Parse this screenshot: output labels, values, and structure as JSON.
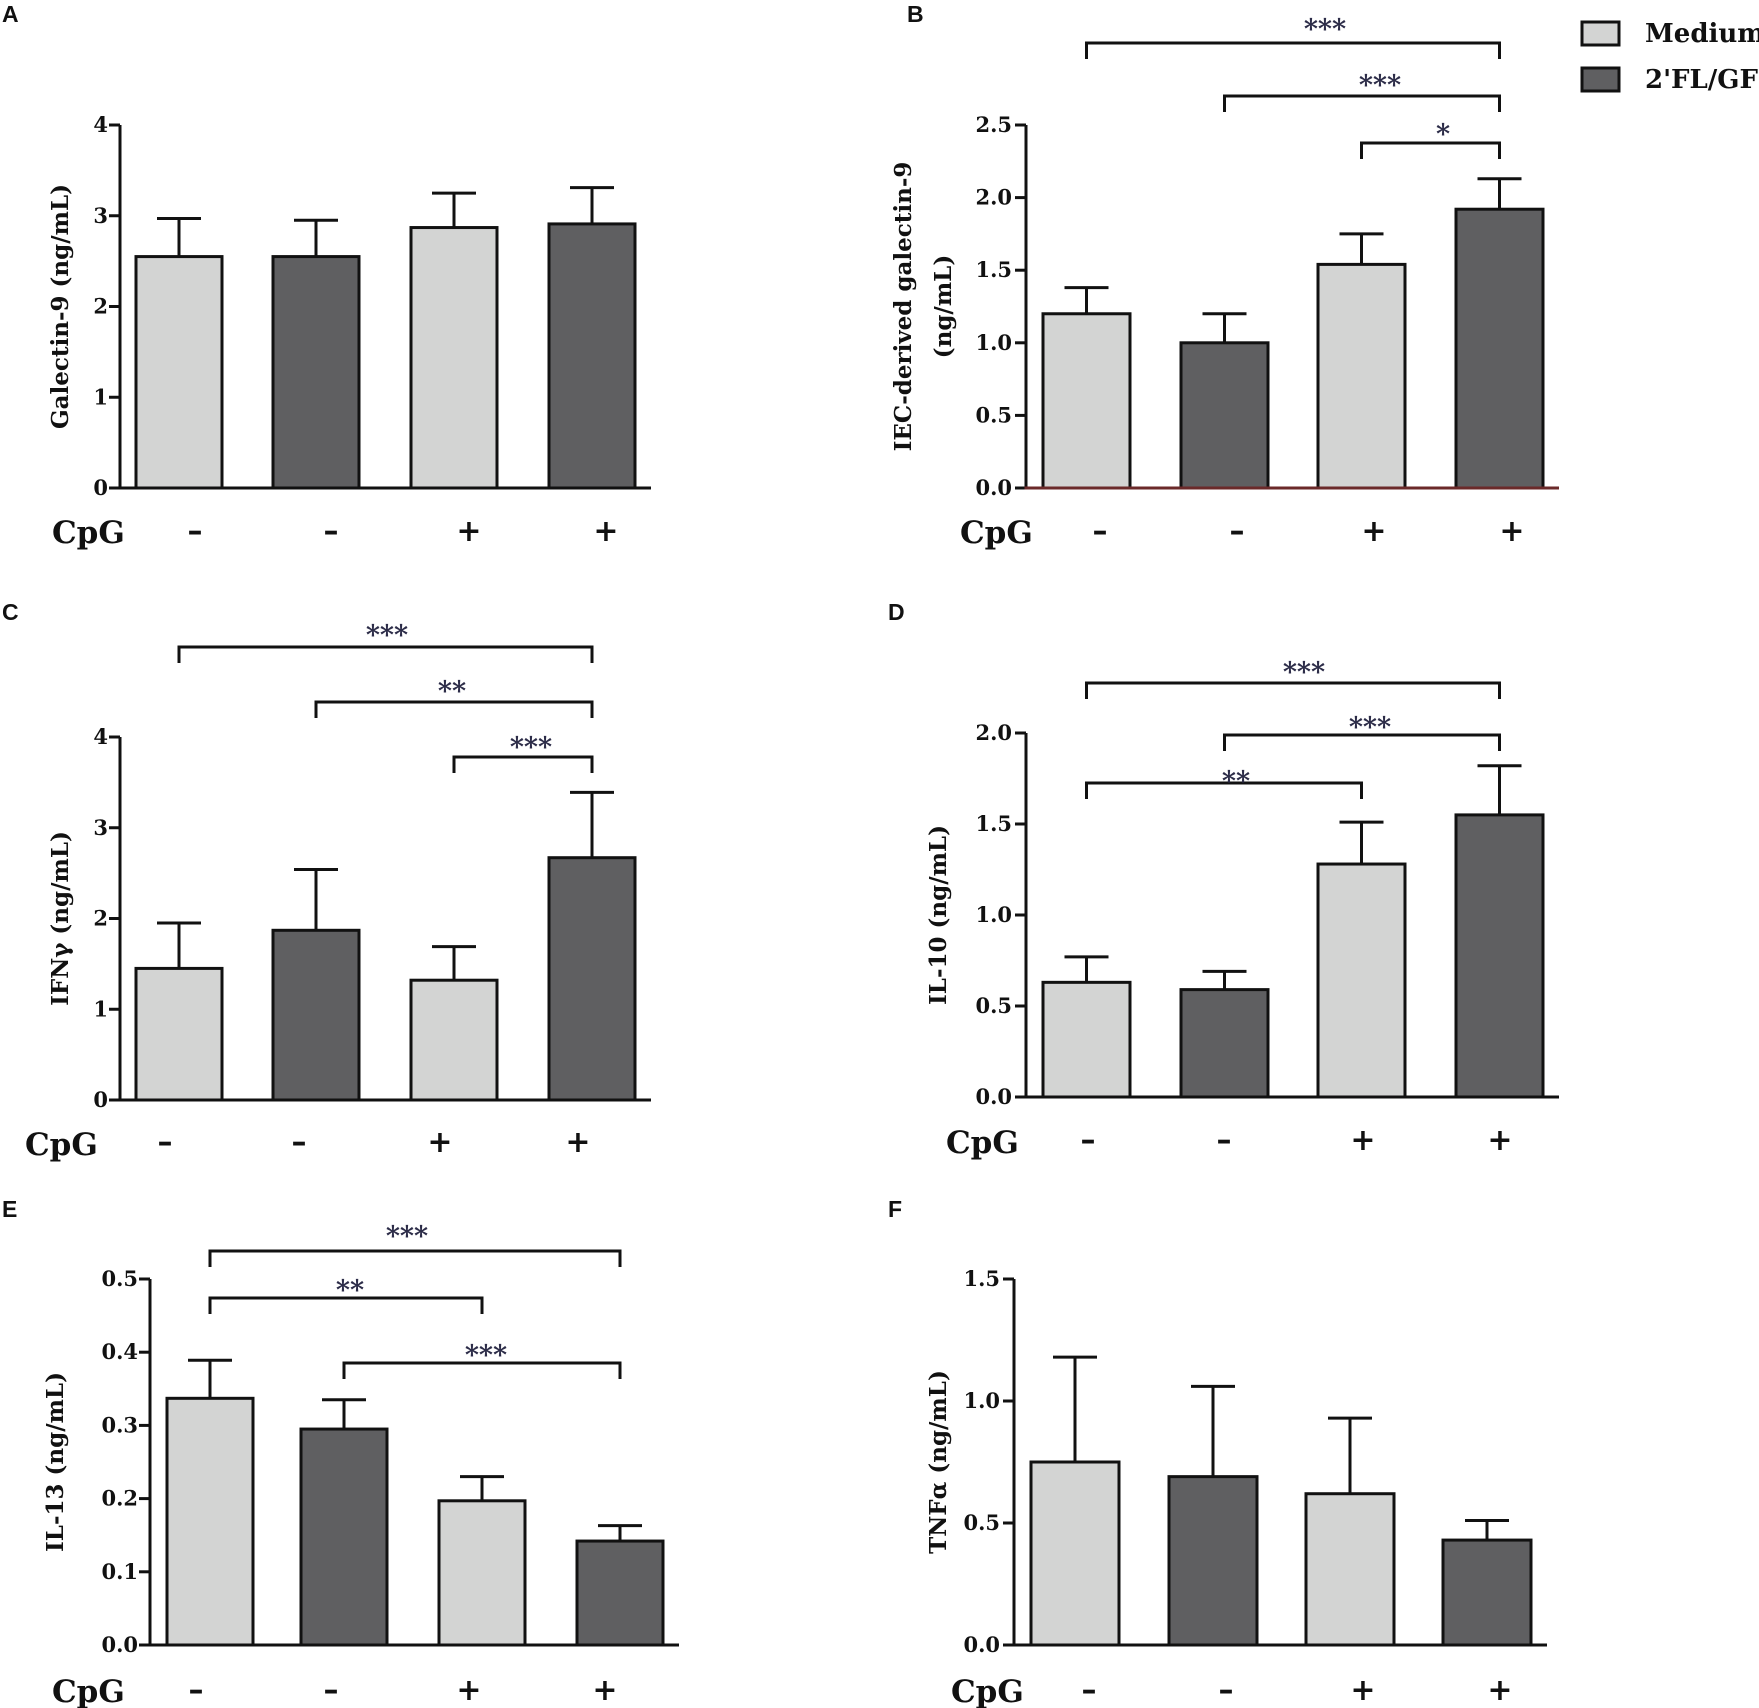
{
  "colors": {
    "medium": "#d3d4d3",
    "treated": "#5f5f61",
    "axis": "#111111",
    "axis_b": "#6b2a2a",
    "bar_stroke": "#111111",
    "sig": "#2c2c48"
  },
  "legend": {
    "items": [
      {
        "label": "Medium",
        "color_key": "medium"
      },
      {
        "label": "2'FL/GF",
        "color_key": "treated"
      }
    ]
  },
  "chart_data": [
    {
      "panel": "A",
      "type": "bar",
      "ylabel": "Galectin-9 (ng/mL)",
      "ylabel_lines": [
        "Galectin-9 (ng/mL)"
      ],
      "ylim": [
        0,
        4
      ],
      "yticks": [
        0,
        1,
        2,
        3,
        4
      ],
      "ytick_labels": [
        "0",
        "1",
        "2",
        "3",
        "4"
      ],
      "xlabel": "CpG",
      "cpg": [
        "–",
        "–",
        "+",
        "+"
      ],
      "series_order": [
        "Medium",
        "2'FL/GF",
        "Medium",
        "2'FL/GF"
      ],
      "values": [
        2.55,
        2.55,
        2.87,
        2.91
      ],
      "errors": [
        0.42,
        0.4,
        0.38,
        0.4
      ],
      "significance": []
    },
    {
      "panel": "B",
      "type": "bar",
      "ylabel": "IEC-derived galectin-9 (ng/mL)",
      "ylabel_lines": [
        "IEC-derived galectin-9",
        "(ng/mL)"
      ],
      "ylim": [
        0,
        2.5
      ],
      "yticks": [
        0,
        0.5,
        1,
        1.5,
        2,
        2.5
      ],
      "ytick_labels": [
        "0.0",
        "0.5",
        "1.0",
        "1.5",
        "2.0",
        "2.5"
      ],
      "xlabel": "CpG",
      "cpg": [
        "–",
        "–",
        "+",
        "+"
      ],
      "series_order": [
        "Medium",
        "2'FL/GF",
        "Medium",
        "2'FL/GF"
      ],
      "values": [
        1.2,
        1.0,
        1.54,
        1.92
      ],
      "errors": [
        0.18,
        0.2,
        0.21,
        0.21
      ],
      "significance": [
        {
          "from": 0,
          "to": 3,
          "label": "***"
        },
        {
          "from": 1,
          "to": 3,
          "label": "***"
        },
        {
          "from": 2,
          "to": 3,
          "label": "*"
        }
      ]
    },
    {
      "panel": "C",
      "type": "bar",
      "ylabel": "IFNγ (ng/mL)",
      "ylabel_lines": [
        "IFNγ (ng/mL)"
      ],
      "ylim": [
        0,
        4
      ],
      "yticks": [
        0,
        1,
        2,
        3,
        4
      ],
      "ytick_labels": [
        "0",
        "1",
        "2",
        "3",
        "4"
      ],
      "xlabel": "CpG",
      "cpg": [
        "–",
        "–",
        "+",
        "+"
      ],
      "series_order": [
        "Medium",
        "2'FL/GF",
        "Medium",
        "2'FL/GF"
      ],
      "values": [
        1.45,
        1.87,
        1.32,
        2.67
      ],
      "errors": [
        0.5,
        0.67,
        0.37,
        0.72
      ],
      "significance": [
        {
          "from": 0,
          "to": 3,
          "label": "***"
        },
        {
          "from": 1,
          "to": 3,
          "label": "**"
        },
        {
          "from": 2,
          "to": 3,
          "label": "***"
        }
      ]
    },
    {
      "panel": "D",
      "type": "bar",
      "ylabel": "IL-10 (ng/mL)",
      "ylabel_lines": [
        "IL-10 (ng/mL)"
      ],
      "ylim": [
        0,
        2
      ],
      "yticks": [
        0,
        0.5,
        1,
        1.5,
        2
      ],
      "ytick_labels": [
        "0.0",
        "0.5",
        "1.0",
        "1.5",
        "2.0"
      ],
      "xlabel": "CpG",
      "cpg": [
        "–",
        "–",
        "+",
        "+"
      ],
      "series_order": [
        "Medium",
        "2'FL/GF",
        "Medium",
        "2'FL/GF"
      ],
      "values": [
        0.63,
        0.59,
        1.28,
        1.55
      ],
      "errors": [
        0.14,
        0.1,
        0.23,
        0.27
      ],
      "significance": [
        {
          "from": 0,
          "to": 3,
          "label": "***"
        },
        {
          "from": 1,
          "to": 3,
          "label": "***"
        },
        {
          "from": 0,
          "to": 2,
          "label": "**"
        }
      ]
    },
    {
      "panel": "E",
      "type": "bar",
      "ylabel": "IL-13 (ng/mL)",
      "ylabel_lines": [
        "IL-13 (ng/mL)"
      ],
      "ylim": [
        0,
        0.5
      ],
      "yticks": [
        0,
        0.1,
        0.2,
        0.3,
        0.4,
        0.5
      ],
      "ytick_labels": [
        "0.0",
        "0.1",
        "0.2",
        "0.3",
        "0.4",
        "0.5"
      ],
      "xlabel": "CpG",
      "cpg": [
        "–",
        "–",
        "+",
        "+"
      ],
      "series_order": [
        "Medium",
        "2'FL/GF",
        "Medium",
        "2'FL/GF"
      ],
      "values": [
        0.337,
        0.295,
        0.197,
        0.142
      ],
      "errors": [
        0.052,
        0.04,
        0.033,
        0.021
      ],
      "significance": [
        {
          "from": 0,
          "to": 3,
          "label": "***"
        },
        {
          "from": 0,
          "to": 2,
          "label": "**"
        },
        {
          "from": 1,
          "to": 3,
          "label": "***"
        }
      ]
    },
    {
      "panel": "F",
      "type": "bar",
      "ylabel": "TNFα (ng/mL)",
      "ylabel_lines": [
        "TNFα (ng/mL)"
      ],
      "ylim": [
        0,
        1.5
      ],
      "yticks": [
        0,
        0.5,
        1,
        1.5
      ],
      "ytick_labels": [
        "0.0",
        "0.5",
        "1.0",
        "1.5"
      ],
      "xlabel": "CpG",
      "cpg": [
        "–",
        "–",
        "+",
        "+"
      ],
      "series_order": [
        "Medium",
        "2'FL/GF",
        "Medium",
        "2'FL/GF"
      ],
      "values": [
        0.75,
        0.69,
        0.62,
        0.43
      ],
      "errors": [
        0.43,
        0.37,
        0.31,
        0.08
      ],
      "significance": []
    }
  ]
}
